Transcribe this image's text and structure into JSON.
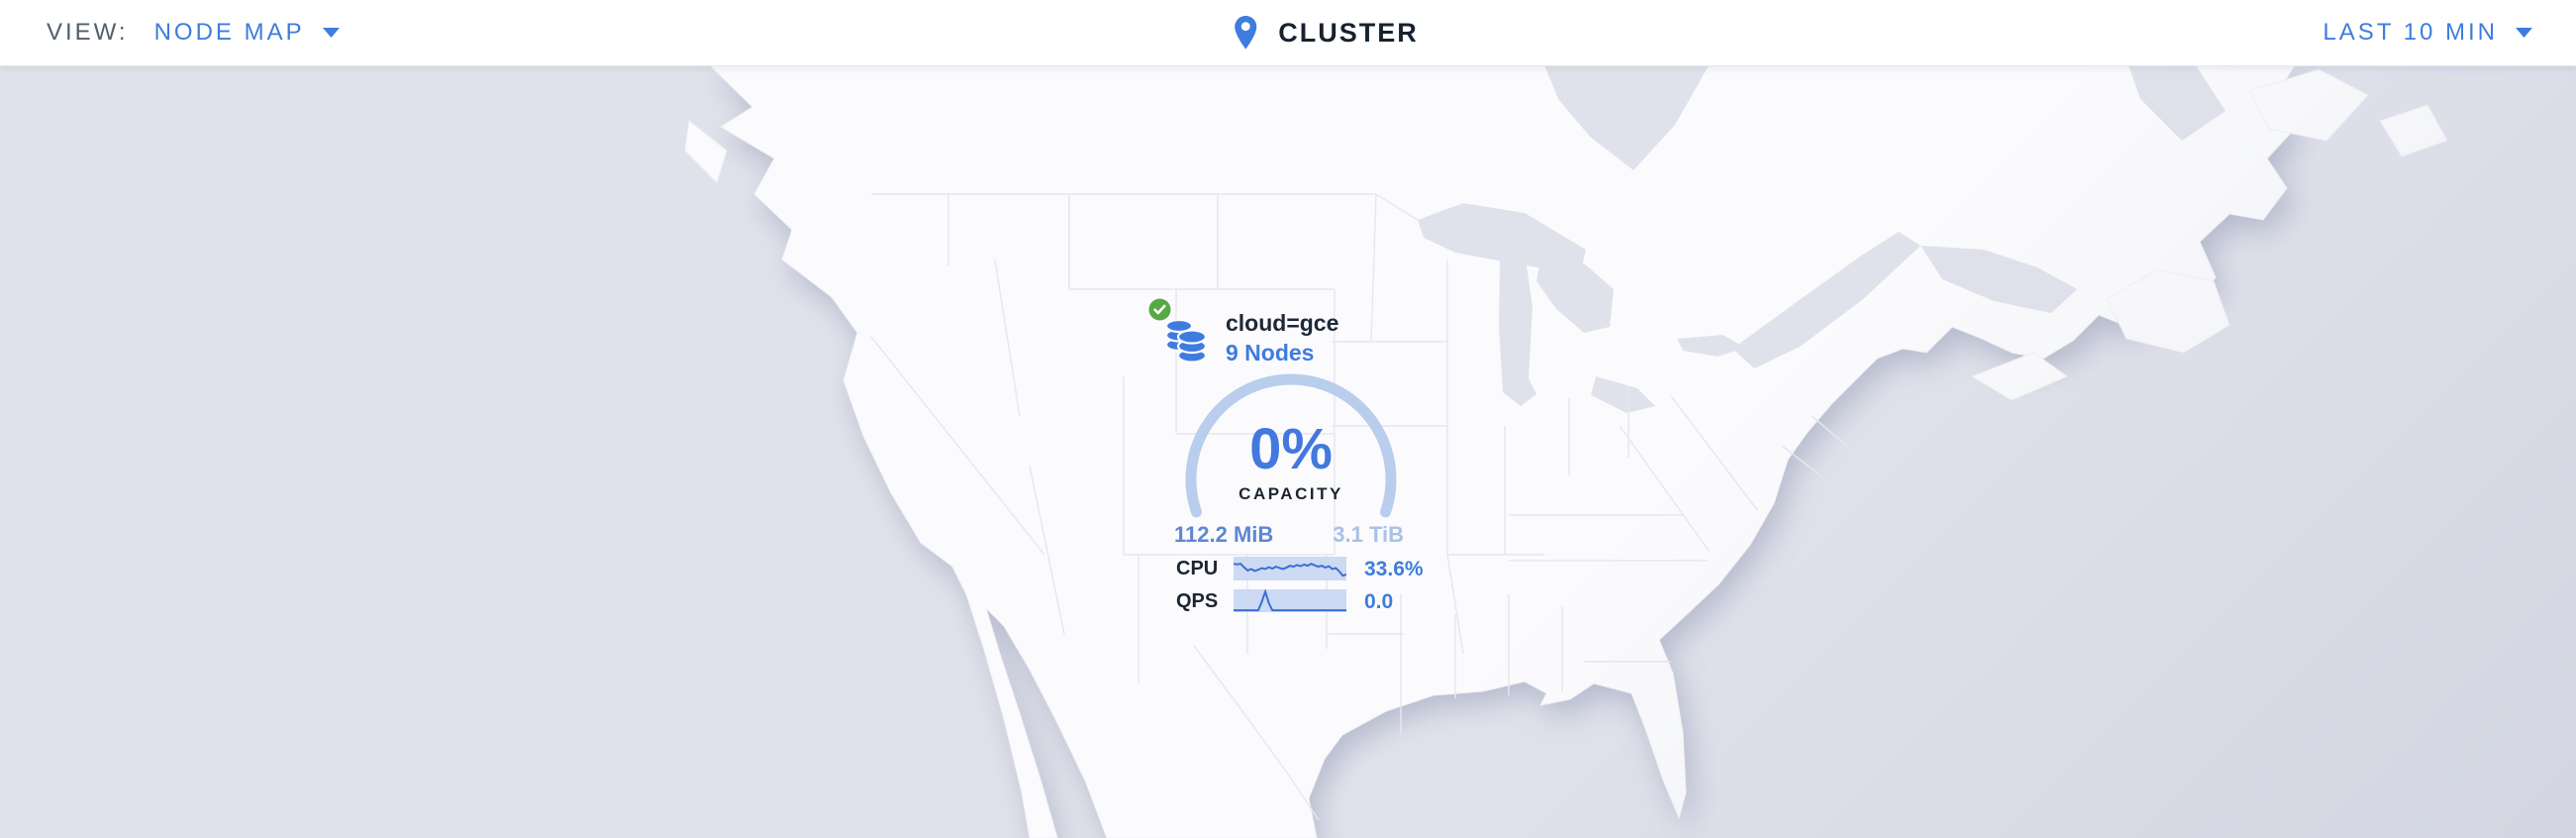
{
  "header": {
    "view_label": "VIEW:",
    "view_value": "NODE MAP",
    "page_title": "CLUSTER",
    "time_range": "LAST 10 MIN"
  },
  "marker": {
    "status": "healthy",
    "locality": "cloud=gce",
    "nodes_link": "9 Nodes",
    "capacity": {
      "percent": "0%",
      "label": "CAPACITY",
      "used": "112.2 MiB",
      "available": "3.1 TiB"
    },
    "cpu": {
      "label": "CPU",
      "value": "33.6%"
    },
    "qps": {
      "label": "QPS",
      "value": "0.0"
    },
    "sparklines": {
      "cpu": [
        0.3,
        0.32,
        0.3,
        0.45,
        0.58,
        0.52,
        0.6,
        0.55,
        0.48,
        0.52,
        0.44,
        0.5,
        0.42,
        0.47,
        0.52,
        0.46,
        0.38,
        0.42,
        0.35,
        0.4,
        0.33,
        0.38,
        0.3,
        0.36,
        0.42,
        0.38,
        0.46,
        0.4,
        0.52,
        0.48,
        0.62,
        0.8,
        0.74
      ],
      "qps": [
        0.92,
        0.92,
        0.92,
        0.92,
        0.92,
        0.92,
        0.92,
        0.92,
        0.55,
        0.1,
        0.6,
        0.92,
        0.92,
        0.92,
        0.92,
        0.92,
        0.92,
        0.92,
        0.92,
        0.92,
        0.92,
        0.92,
        0.92,
        0.92,
        0.92,
        0.92,
        0.92,
        0.92,
        0.92,
        0.92,
        0.92,
        0.92,
        0.92
      ]
    }
  },
  "colors": {
    "accent_blue": "#3e7cdf",
    "dark_text": "#1b2533",
    "muted_label": "#525e6c",
    "healthy_green": "#57a944",
    "gauge_arc": "#b9cdec",
    "capacity_used_text": "#5d87d3",
    "capacity_total_text": "#a9c0e8",
    "sparkline_bg": "#ccdaf3",
    "sparkline_line": "#3a6fd3",
    "ocean": "#e0e2eb",
    "land": "#fbfbfd"
  }
}
